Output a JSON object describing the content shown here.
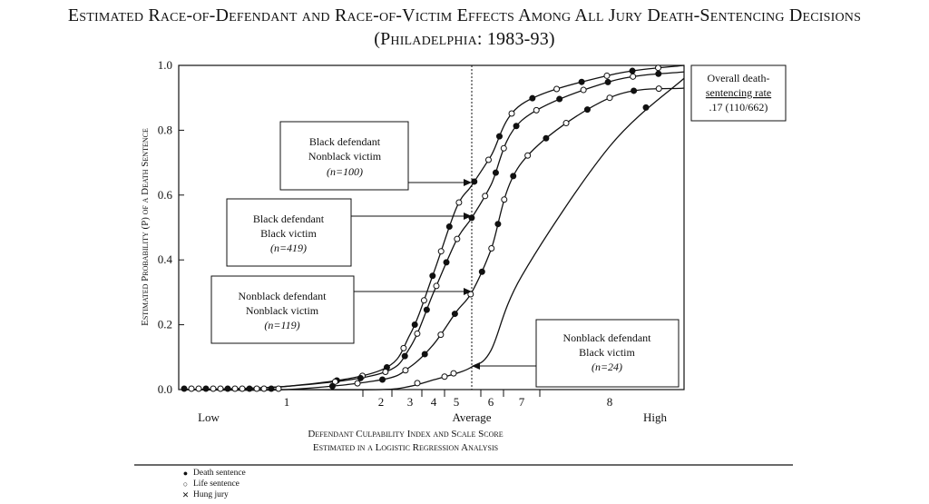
{
  "title": "Estimated Race-of-Defendant and Race-of-Victim Effects Among All Jury Death-Sentencing Decisions",
  "subtitle": "(Philadelphia: 1983-93)",
  "chart_data": {
    "type": "line",
    "ylabel": "Estimated Probability (P) of a Death Sentence",
    "xlabel_line1": "Defendant Culpability Index and Scale Score",
    "xlabel_line2": "Estimated in a Logistic Regression Analysis",
    "ylim": [
      0,
      1
    ],
    "y_ticks": [
      "0.0",
      "0.2",
      "0.4",
      "0.6",
      "0.8",
      "1.0"
    ],
    "x_scale_ticks": [
      "1",
      "2",
      "3",
      "4",
      "5",
      "6",
      "7",
      "8"
    ],
    "x_anchor_labels": [
      "Low",
      "Average",
      "High"
    ],
    "average_marker": "Average",
    "series": [
      {
        "label_lines": [
          "Black defendant",
          "Nonblack victim",
          "(n=100)"
        ],
        "x": [
          1,
          2,
          3,
          4,
          5,
          5.5,
          6,
          7,
          8
        ],
        "y": [
          0.01,
          0.06,
          0.17,
          0.36,
          0.56,
          0.63,
          0.72,
          0.88,
          0.97
        ]
      },
      {
        "label_lines": [
          "Black defendant",
          "Black victim",
          "(n=419)"
        ],
        "x": [
          1,
          2,
          3,
          4,
          5,
          5.5,
          6,
          7,
          8
        ],
        "y": [
          0.01,
          0.05,
          0.13,
          0.3,
          0.46,
          0.53,
          0.63,
          0.83,
          0.95
        ]
      },
      {
        "label_lines": [
          "Nonblack defendant",
          "Nonblack victim",
          "(n=119)"
        ],
        "x": [
          1,
          2,
          3,
          4,
          5,
          5.5,
          6,
          7,
          8
        ],
        "y": [
          0.0,
          0.03,
          0.07,
          0.14,
          0.24,
          0.3,
          0.43,
          0.7,
          0.9
        ]
      },
      {
        "label_lines": [
          "Nonblack defendant",
          "Black victim",
          "(n=24)"
        ],
        "x": [
          1,
          2,
          3,
          4,
          5,
          5.5,
          6,
          7,
          8
        ],
        "y": [
          0.0,
          0.0,
          0.01,
          0.03,
          0.05,
          0.07,
          0.12,
          0.35,
          0.75
        ]
      }
    ],
    "overall_rate_lines": [
      "Overall death-",
      "sentencing rate",
      ".17 (110/662)"
    ]
  },
  "legend": [
    {
      "symbol": "●",
      "label": "Death sentence"
    },
    {
      "symbol": "○",
      "label": "Life sentence"
    },
    {
      "symbol": "✕",
      "label": "Hung jury"
    }
  ]
}
